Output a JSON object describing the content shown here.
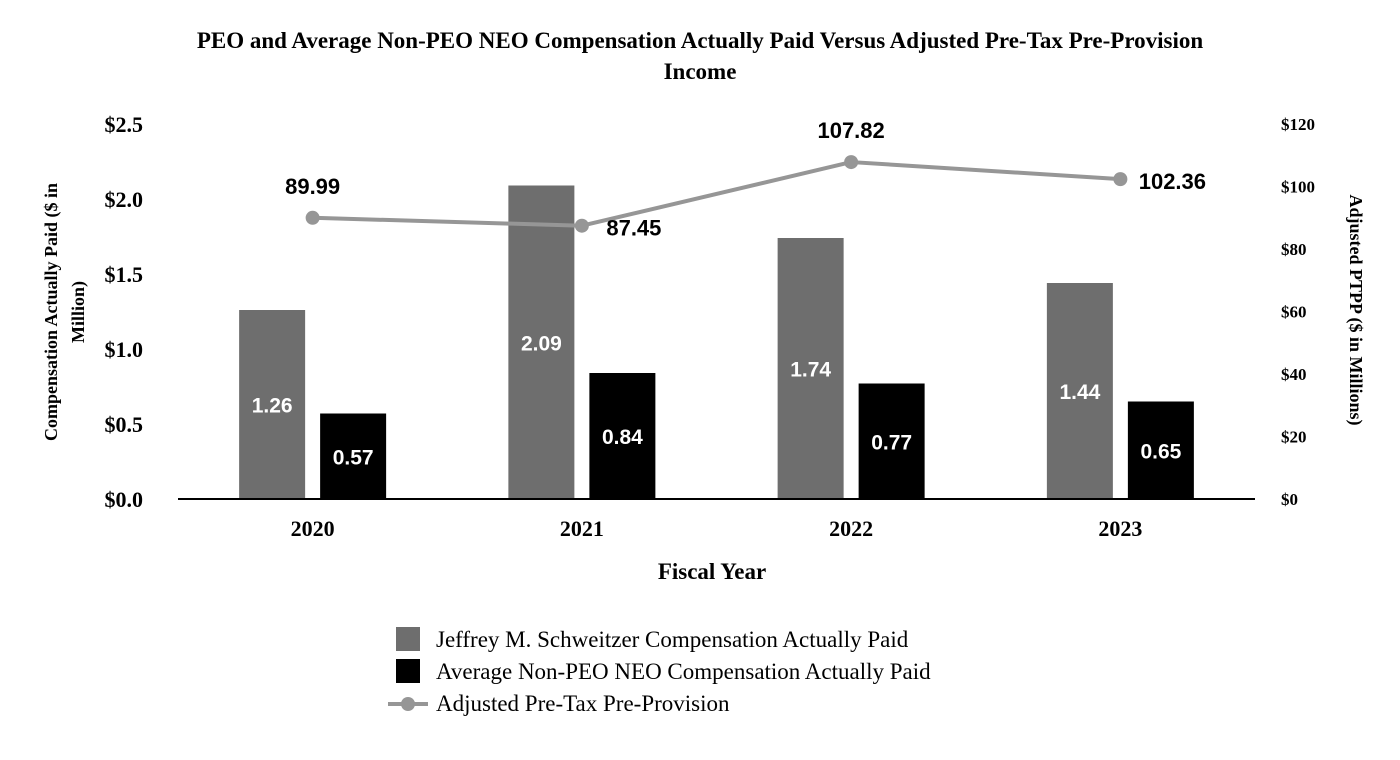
{
  "chart_data": {
    "type": "bar",
    "title": "PEO and Average Non-PEO NEO Compensation Actually Paid Versus Adjusted Pre-Tax Pre-Provision Income",
    "title_lines": [
      "PEO and Average Non-PEO NEO Compensation Actually Paid Versus Adjusted Pre-Tax Pre-Provision",
      "Income"
    ],
    "xlabel": "Fiscal Year",
    "ylabel": "Compensation Actually Paid ($ in Million)",
    "ylabel_lines": [
      "Compensation Actually Paid ($ in",
      "Million)"
    ],
    "y2label": "Adjusted PTPP ($ in Millions)",
    "categories": [
      "2020",
      "2021",
      "2022",
      "2023"
    ],
    "ylim": [
      0,
      2.5
    ],
    "y_ticks": [
      "$0.0",
      "$0.5",
      "$1.0",
      "$1.5",
      "$2.0",
      "$2.5"
    ],
    "y2lim": [
      0,
      120
    ],
    "y2_ticks": [
      "$0",
      "$20",
      "$40",
      "$60",
      "$80",
      "$100",
      "$120"
    ],
    "grid": false,
    "legend_position": "bottom",
    "series": [
      {
        "name": "Jeffrey M. Schweitzer Compensation Actually Paid",
        "kind": "bar",
        "axis": "left",
        "color": "#6e6e6e",
        "values": [
          1.26,
          2.09,
          1.74,
          1.44
        ],
        "labels": [
          "1.26",
          "2.09",
          "1.74",
          "1.44"
        ]
      },
      {
        "name": "Average Non-PEO NEO Compensation Actually Paid",
        "kind": "bar",
        "axis": "left",
        "color": "#000000",
        "values": [
          0.57,
          0.84,
          0.77,
          0.65
        ],
        "labels": [
          "0.57",
          "0.84",
          "0.77",
          "0.65"
        ]
      },
      {
        "name": "Adjusted Pre-Tax Pre-Provision",
        "kind": "line",
        "axis": "right",
        "color": "#969696",
        "values": [
          89.99,
          87.45,
          107.82,
          102.36
        ],
        "labels": [
          "89.99",
          "87.45",
          "107.82",
          "102.36"
        ]
      }
    ]
  }
}
